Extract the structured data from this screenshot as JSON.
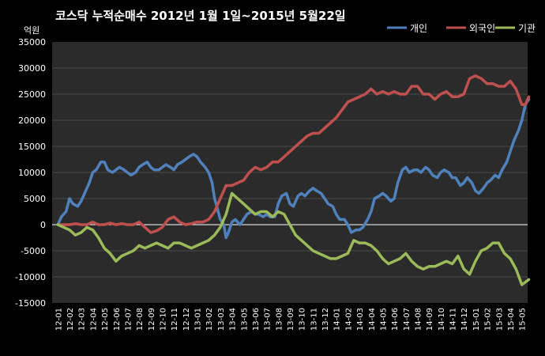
{
  "chart_data": {
    "type": "line",
    "title": "코스닥  누적순매수 2012년 1월 1일~2015년 5월22일",
    "ylabel": "억원",
    "xlabel": "",
    "ylim": [
      -15000,
      35000
    ],
    "y_ticks": [
      -15000,
      -10000,
      -5000,
      0,
      5000,
      10000,
      15000,
      20000,
      25000,
      30000,
      35000
    ],
    "categories": [
      "12-01",
      "12-02",
      "12-03",
      "12-04",
      "12-05",
      "12-06",
      "12-07",
      "12-08",
      "12-09",
      "12-10",
      "12-11",
      "12-12",
      "13-01",
      "13-02",
      "13-03",
      "13-04",
      "13-05",
      "13-06",
      "13-07",
      "13-08",
      "13-09",
      "13-10",
      "13-11",
      "13-12",
      "14-01",
      "14-02",
      "14-03",
      "14-04",
      "14-05",
      "14-06",
      "14-07",
      "14-08",
      "14-09",
      "14-10",
      "14-11",
      "14-12",
      "15-01",
      "15-02",
      "15-03",
      "15-04",
      "15-05"
    ],
    "grid": "horizontal",
    "legend_position": "top-right",
    "colors": {
      "background": "#000000",
      "plot_area": "#2b2b2b",
      "grid": "#4a4a4a",
      "text": "#ffffff"
    },
    "series": [
      {
        "name": "개인",
        "color": "#4f81bd",
        "x": [
          0,
          0.3,
          0.7,
          1.0,
          1.3,
          1.7,
          2.0,
          2.3,
          2.7,
          3.0,
          3.3,
          3.7,
          4.0,
          4.3,
          4.7,
          5.0,
          5.3,
          5.7,
          6.0,
          6.3,
          6.7,
          7.0,
          7.3,
          7.7,
          8.0,
          8.3,
          8.7,
          9.0,
          9.3,
          9.7,
          10.0,
          10.3,
          10.7,
          11.0,
          11.3,
          11.7,
          12.0,
          12.3,
          12.7,
          13.0,
          13.3,
          13.5,
          13.7,
          14.0,
          14.3,
          14.5,
          14.7,
          15.0,
          15.3,
          15.7,
          16.0,
          16.3,
          16.7,
          17.0,
          17.3,
          17.7,
          18.0,
          18.3,
          18.7,
          19.0,
          19.3,
          19.7,
          20.0,
          20.3,
          20.7,
          21.0,
          21.3,
          21.7,
          22.0,
          22.3,
          22.7,
          23.0,
          23.3,
          23.7,
          24.0,
          24.3,
          24.7,
          25.0,
          25.3,
          25.7,
          26.0,
          26.3,
          26.7,
          27.0,
          27.3,
          27.7,
          28.0,
          28.3,
          28.7,
          29.0,
          29.3,
          29.7,
          30.0,
          30.3,
          30.7,
          31.0,
          31.3,
          31.7,
          32.0,
          32.3,
          32.7,
          33.0,
          33.3,
          33.7,
          34.0,
          34.3,
          34.7,
          35.0,
          35.3,
          35.7,
          36.0,
          36.3,
          36.7,
          37.0,
          37.3,
          37.7,
          38.0,
          38.3,
          38.7,
          39.0,
          39.3,
          39.7,
          40.0,
          40.3,
          40.6
        ],
        "values": [
          0,
          1500,
          2500,
          5000,
          4000,
          3500,
          4500,
          6000,
          8000,
          10000,
          10500,
          12000,
          12000,
          10500,
          10000,
          10500,
          11000,
          10500,
          10000,
          9500,
          10000,
          11000,
          11500,
          12000,
          11000,
          10500,
          10500,
          11000,
          11500,
          11000,
          10500,
          11500,
          12000,
          12500,
          13000,
          13500,
          13000,
          12000,
          11000,
          10000,
          8000,
          5000,
          3500,
          1000,
          0,
          -2500,
          -1500,
          500,
          1000,
          0,
          1000,
          2000,
          2500,
          2000,
          2000,
          1500,
          2000,
          1500,
          1500,
          4000,
          5500,
          6000,
          4000,
          3500,
          5500,
          6000,
          5500,
          6500,
          7000,
          6500,
          6000,
          5000,
          4000,
          3500,
          2000,
          1000,
          1000,
          0,
          -1500,
          -1000,
          -1000,
          -500,
          1000,
          2500,
          5000,
          5500,
          6000,
          5500,
          4500,
          5000,
          8000,
          10500,
          11000,
          10000,
          10500,
          10500,
          10000,
          11000,
          10500,
          9500,
          9000,
          10000,
          10500,
          10000,
          9000,
          9000,
          7500,
          8000,
          9000,
          8000,
          6500,
          6000,
          7000,
          8000,
          8500,
          9500,
          9000,
          10500,
          12000,
          14000,
          16000,
          18000,
          20000,
          23000,
          24000
        ]
      },
      {
        "name": "외국인",
        "color": "#c0504d",
        "x": [
          0,
          0.5,
          1.0,
          1.5,
          2.0,
          2.5,
          3.0,
          3.5,
          4.0,
          4.5,
          5.0,
          5.5,
          6.0,
          6.5,
          7.0,
          7.5,
          8.0,
          8.5,
          9.0,
          9.5,
          10.0,
          10.5,
          11.0,
          11.5,
          12.0,
          12.5,
          13.0,
          13.5,
          14.0,
          14.5,
          15.0,
          15.5,
          16.0,
          16.5,
          17.0,
          17.5,
          18.0,
          18.5,
          19.0,
          19.5,
          20.0,
          20.5,
          21.0,
          21.5,
          22.0,
          22.5,
          23.0,
          23.5,
          24.0,
          24.5,
          25.0,
          25.5,
          26.0,
          26.5,
          27.0,
          27.5,
          28.0,
          28.5,
          29.0,
          29.5,
          30.0,
          30.5,
          31.0,
          31.5,
          32.0,
          32.5,
          33.0,
          33.5,
          34.0,
          34.5,
          35.0,
          35.5,
          36.0,
          36.5,
          37.0,
          37.5,
          38.0,
          38.5,
          39.0,
          39.5,
          40.0,
          40.3,
          40.6
        ],
        "values": [
          0,
          0,
          0,
          200,
          0,
          0,
          500,
          0,
          0,
          300,
          0,
          200,
          0,
          0,
          500,
          -500,
          -1500,
          -1200,
          -500,
          1000,
          1500,
          500,
          0,
          200,
          500,
          500,
          1000,
          2500,
          5000,
          7500,
          7500,
          8000,
          8500,
          10000,
          11000,
          10500,
          11000,
          12000,
          12000,
          13000,
          14000,
          15000,
          16000,
          17000,
          17500,
          17500,
          18500,
          19500,
          20500,
          22000,
          23500,
          24000,
          24500,
          25000,
          26000,
          25000,
          25500,
          25000,
          25500,
          25000,
          25000,
          26500,
          26500,
          25000,
          25000,
          24000,
          25000,
          25500,
          24500,
          24500,
          25000,
          28000,
          28500,
          28000,
          27000,
          27000,
          26500,
          26500,
          27500,
          26000,
          23000,
          23000,
          24500
        ]
      },
      {
        "name": "기관",
        "color": "#9bbb59",
        "x": [
          0,
          0.5,
          1.0,
          1.5,
          2.0,
          2.5,
          3.0,
          3.5,
          4.0,
          4.5,
          5.0,
          5.5,
          6.0,
          6.5,
          7.0,
          7.5,
          8.0,
          8.5,
          9.0,
          9.5,
          10.0,
          10.5,
          11.0,
          11.5,
          12.0,
          12.5,
          13.0,
          13.5,
          14.0,
          14.5,
          15.0,
          15.5,
          16.0,
          16.5,
          17.0,
          17.5,
          18.0,
          18.5,
          19.0,
          19.5,
          20.0,
          20.5,
          21.0,
          21.5,
          22.0,
          22.5,
          23.0,
          23.5,
          24.0,
          24.5,
          25.0,
          25.5,
          26.0,
          26.5,
          27.0,
          27.5,
          28.0,
          28.5,
          29.0,
          29.5,
          30.0,
          30.5,
          31.0,
          31.5,
          32.0,
          32.5,
          33.0,
          33.5,
          34.0,
          34.5,
          35.0,
          35.5,
          36.0,
          36.5,
          37.0,
          37.5,
          38.0,
          38.5,
          39.0,
          39.5,
          40.0,
          40.3,
          40.6
        ],
        "values": [
          0,
          -500,
          -1000,
          -2000,
          -1500,
          -500,
          -1000,
          -2500,
          -4500,
          -5500,
          -7000,
          -6000,
          -5500,
          -5000,
          -4000,
          -4500,
          -4000,
          -3500,
          -4000,
          -4500,
          -3500,
          -3500,
          -4000,
          -4500,
          -4000,
          -3500,
          -3000,
          -2000,
          -500,
          2000,
          6000,
          5000,
          4000,
          3000,
          2000,
          2500,
          2500,
          1500,
          2500,
          2000,
          0,
          -2000,
          -3000,
          -4000,
          -5000,
          -5500,
          -6000,
          -6500,
          -6500,
          -6000,
          -5500,
          -3000,
          -3500,
          -3500,
          -4000,
          -5000,
          -6500,
          -7500,
          -7000,
          -6500,
          -5500,
          -7000,
          -8000,
          -8500,
          -8000,
          -8000,
          -7500,
          -7000,
          -7500,
          -6000,
          -8500,
          -9500,
          -7000,
          -5000,
          -4500,
          -3500,
          -3500,
          -5500,
          -6500,
          -8500,
          -11500,
          -11000,
          -10500
        ]
      }
    ]
  }
}
